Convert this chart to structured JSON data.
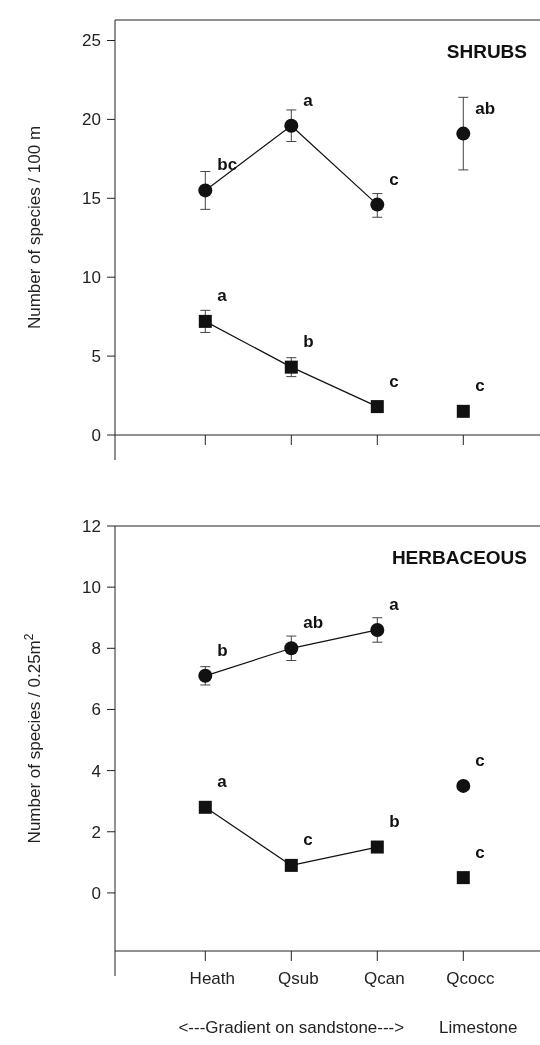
{
  "chart_data": [
    {
      "type": "line",
      "title": "SHRUBS",
      "ylabel": "Number of species / 100 m",
      "categories": [
        "Heath",
        "Qsub",
        "Qcan",
        "Qcocc"
      ],
      "tick_labels": "y",
      "ylim": [
        0,
        26.3
      ],
      "yticks": [
        0,
        5,
        10,
        15,
        20,
        25
      ],
      "grid": false,
      "series": [
        {
          "color": "#111111",
          "marker": "circle",
          "values": [
            15.5,
            19.6,
            14.6,
            null
          ],
          "errors": [
            [
              14.3,
              16.7
            ],
            [
              18.6,
              20.6
            ],
            [
              13.8,
              15.3
            ],
            null
          ]
        },
        {
          "type": "scatter",
          "color": "#111111",
          "marker": "circle",
          "values": [
            null,
            null,
            null,
            19.1
          ],
          "errors": [
            null,
            null,
            null,
            [
              16.8,
              21.4
            ]
          ]
        },
        {
          "color": "#111111",
          "marker": "square",
          "values": [
            7.2,
            4.3,
            1.8,
            null
          ],
          "errors": [
            [
              6.5,
              7.9
            ],
            [
              3.7,
              4.9
            ],
            null,
            null
          ]
        },
        {
          "type": "scatter",
          "color": "#111111",
          "marker": "square",
          "values": [
            null,
            null,
            null,
            1.5
          ]
        }
      ],
      "annotations": [
        {
          "text": "bc",
          "x": "Heath",
          "y": 15.5
        },
        {
          "text": "a",
          "x": "Qsub",
          "y": 19.6
        },
        {
          "text": "c",
          "x": "Qcan",
          "y": 14.6
        },
        {
          "text": "ab",
          "x": "Qcocc",
          "y": 19.1
        },
        {
          "text": "a",
          "x": "Heath",
          "y": 7.2
        },
        {
          "text": "b",
          "x": "Qsub",
          "y": 4.3
        },
        {
          "text": "c",
          "x": "Qcan",
          "y": 1.8
        },
        {
          "text": "c",
          "x": "Qcocc",
          "y": 1.5
        }
      ]
    },
    {
      "type": "line",
      "title": "HERBACEOUS",
      "ylabel": "Number of species / 0.25m$^{2}$",
      "categories": [
        "Heath",
        "Qsub",
        "Qcan",
        "Qcocc"
      ],
      "ylim": [
        -1.9,
        12
      ],
      "yticks": [
        0,
        2,
        4,
        6,
        8,
        10,
        12
      ],
      "grid": false,
      "series": [
        {
          "color": "#111111",
          "marker": "circle",
          "values": [
            7.1,
            8.0,
            8.6,
            null
          ],
          "errors": [
            [
              6.8,
              7.4
            ],
            [
              7.6,
              8.4
            ],
            [
              8.2,
              9.0
            ],
            null
          ]
        },
        {
          "type": "scatter",
          "color": "#111111",
          "marker": "circle",
          "values": [
            null,
            null,
            null,
            3.5
          ]
        },
        {
          "color": "#111111",
          "marker": "square",
          "values": [
            2.8,
            0.9,
            1.5,
            null
          ]
        },
        {
          "type": "scatter",
          "color": "#111111",
          "marker": "square",
          "values": [
            null,
            null,
            null,
            0.5
          ]
        }
      ],
      "annotations": [
        {
          "text": "b",
          "x": "Heath",
          "y": 7.1
        },
        {
          "text": "ab",
          "x": "Qsub",
          "y": 8.0
        },
        {
          "text": "a",
          "x": "Qcan",
          "y": 8.6
        },
        {
          "text": "c",
          "x": "Qcocc",
          "y": 3.5
        },
        {
          "text": "a",
          "x": "Heath",
          "y": 2.8
        },
        {
          "text": "c",
          "x": "Qsub",
          "y": 0.9
        },
        {
          "text": "b",
          "x": "Qcan",
          "y": 1.5
        },
        {
          "text": "c",
          "x": "Qcocc",
          "y": 0.5
        },
        "<---Gradient on sandstone--->",
        "Limestone"
      ]
    }
  ]
}
